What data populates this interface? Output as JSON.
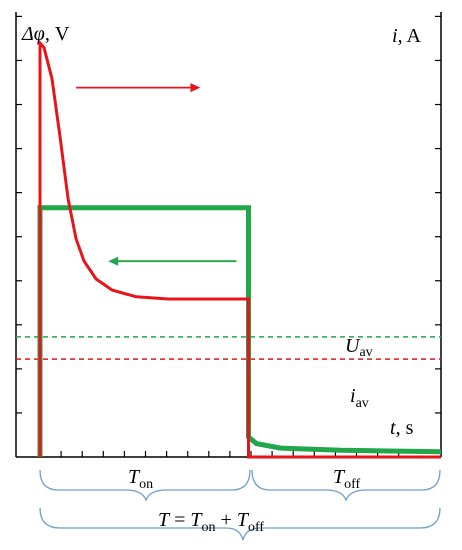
{
  "chart_data": {
    "type": "line",
    "y_left_label": {
      "symbol": "Δφ",
      "unit": ", V"
    },
    "y_right_label": {
      "symbol": "i",
      "unit": ", A"
    },
    "x_label": {
      "symbol": "t",
      "unit": ", s"
    },
    "period_labels": {
      "t_on": {
        "main": "T",
        "sub": "on"
      },
      "t_off": {
        "main": "T",
        "sub": "off"
      },
      "total": {
        "main": "T",
        "eq": " = ",
        "on_main": "T",
        "on_sub": "on",
        "plus": " + ",
        "off_main": "T",
        "off_sub": "off"
      }
    },
    "level_labels": {
      "u_av": {
        "main": "U",
        "sub": "av"
      },
      "i_av": {
        "main": "i",
        "sub": "av"
      }
    },
    "colors": {
      "potential": "#e8141b",
      "current": "#21a64a",
      "axes": "#000000",
      "brace": "#6d9ecf"
    },
    "x_domain": [
      0,
      1
    ],
    "y_domain": [
      0,
      1
    ],
    "t_on_end": 0.52,
    "series": [
      {
        "role": "potential",
        "points": [
          [
            0,
            0
          ],
          [
            0,
            0.93
          ],
          [
            0.01,
            0.92
          ],
          [
            0.03,
            0.85
          ],
          [
            0.05,
            0.72
          ],
          [
            0.07,
            0.58
          ],
          [
            0.09,
            0.49
          ],
          [
            0.11,
            0.44
          ],
          [
            0.14,
            0.4
          ],
          [
            0.18,
            0.375
          ],
          [
            0.24,
            0.36
          ],
          [
            0.32,
            0.355
          ],
          [
            0.45,
            0.355
          ],
          [
            0.52,
            0.355
          ],
          [
            0.52,
            0.0
          ],
          [
            1.0,
            0.0
          ]
        ]
      },
      {
        "role": "current",
        "points": [
          [
            0,
            0
          ],
          [
            0,
            0.56
          ],
          [
            0.52,
            0.56
          ],
          [
            0.52,
            0.045
          ],
          [
            0.54,
            0.03
          ],
          [
            0.6,
            0.02
          ],
          [
            0.75,
            0.015
          ],
          [
            1.0,
            0.012
          ]
        ]
      }
    ],
    "u_av": 0.27,
    "i_av": 0.22,
    "arrows": [
      {
        "role": "potential",
        "from": 0.09,
        "to": 0.4,
        "y": 0.83
      },
      {
        "role": "current",
        "from": 0.49,
        "to": 0.17,
        "y": 0.44
      }
    ]
  }
}
